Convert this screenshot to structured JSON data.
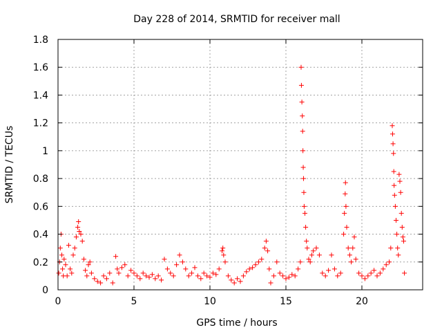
{
  "chart_data": {
    "type": "scatter",
    "title": "Day 228 of 2014, SRMTID for receiver mall",
    "xlabel": "GPS time / hours",
    "ylabel": "SRMTID / TECUs",
    "xlim": [
      0,
      24
    ],
    "ylim": [
      0,
      1.8
    ],
    "xticks": [
      0,
      5,
      10,
      15,
      20
    ],
    "xtick_labels": [
      "0",
      "5",
      "10",
      "15",
      "20"
    ],
    "yticks": [
      0,
      0.2,
      0.4,
      0.6,
      0.8,
      1,
      1.2,
      1.4,
      1.6,
      1.8
    ],
    "ytick_labels": [
      "0",
      "0.2",
      "0.4",
      "0.6",
      "0.8",
      "1",
      "1.2",
      "1.4",
      "1.6",
      "1.8"
    ],
    "grid": true,
    "marker": "+",
    "color": "#ff0000",
    "series": [
      {
        "name": "SRMTID",
        "points": [
          [
            0.05,
            0.12
          ],
          [
            0.1,
            0.2
          ],
          [
            0.15,
            0.3
          ],
          [
            0.2,
            0.4
          ],
          [
            0.25,
            0.25
          ],
          [
            0.3,
            0.15
          ],
          [
            0.35,
            0.1
          ],
          [
            0.4,
            0.22
          ],
          [
            0.5,
            0.18
          ],
          [
            0.6,
            0.1
          ],
          [
            0.7,
            0.32
          ],
          [
            0.8,
            0.15
          ],
          [
            0.9,
            0.12
          ],
          [
            1.0,
            0.25
          ],
          [
            1.1,
            0.3
          ],
          [
            1.2,
            0.38
          ],
          [
            1.3,
            0.45
          ],
          [
            1.35,
            0.49
          ],
          [
            1.4,
            0.42
          ],
          [
            1.5,
            0.4
          ],
          [
            1.6,
            0.35
          ],
          [
            1.7,
            0.22
          ],
          [
            1.8,
            0.14
          ],
          [
            1.9,
            0.1
          ],
          [
            2.0,
            0.18
          ],
          [
            2.1,
            0.2
          ],
          [
            2.2,
            0.12
          ],
          [
            2.4,
            0.08
          ],
          [
            2.6,
            0.06
          ],
          [
            2.8,
            0.05
          ],
          [
            3.0,
            0.1
          ],
          [
            3.2,
            0.08
          ],
          [
            3.4,
            0.12
          ],
          [
            3.6,
            0.05
          ],
          [
            3.8,
            0.24
          ],
          [
            3.9,
            0.15
          ],
          [
            4.0,
            0.12
          ],
          [
            4.2,
            0.16
          ],
          [
            4.4,
            0.18
          ],
          [
            4.6,
            0.1
          ],
          [
            4.8,
            0.14
          ],
          [
            5.0,
            0.12
          ],
          [
            5.2,
            0.1
          ],
          [
            5.4,
            0.08
          ],
          [
            5.6,
            0.12
          ],
          [
            5.8,
            0.1
          ],
          [
            6.0,
            0.09
          ],
          [
            6.2,
            0.11
          ],
          [
            6.4,
            0.08
          ],
          [
            6.6,
            0.1
          ],
          [
            6.8,
            0.07
          ],
          [
            7.0,
            0.22
          ],
          [
            7.2,
            0.15
          ],
          [
            7.4,
            0.12
          ],
          [
            7.6,
            0.1
          ],
          [
            7.8,
            0.18
          ],
          [
            8.0,
            0.25
          ],
          [
            8.2,
            0.2
          ],
          [
            8.4,
            0.15
          ],
          [
            8.6,
            0.1
          ],
          [
            8.8,
            0.12
          ],
          [
            9.0,
            0.16
          ],
          [
            9.2,
            0.1
          ],
          [
            9.4,
            0.08
          ],
          [
            9.6,
            0.12
          ],
          [
            9.8,
            0.1
          ],
          [
            10.0,
            0.09
          ],
          [
            10.2,
            0.12
          ],
          [
            10.4,
            0.11
          ],
          [
            10.6,
            0.15
          ],
          [
            10.8,
            0.28
          ],
          [
            10.85,
            0.3
          ],
          [
            10.9,
            0.25
          ],
          [
            11.0,
            0.2
          ],
          [
            11.2,
            0.1
          ],
          [
            11.4,
            0.07
          ],
          [
            11.6,
            0.05
          ],
          [
            11.8,
            0.08
          ],
          [
            12.0,
            0.06
          ],
          [
            12.2,
            0.1
          ],
          [
            12.4,
            0.13
          ],
          [
            12.6,
            0.15
          ],
          [
            12.8,
            0.16
          ],
          [
            13.0,
            0.18
          ],
          [
            13.2,
            0.2
          ],
          [
            13.4,
            0.22
          ],
          [
            13.6,
            0.3
          ],
          [
            13.7,
            0.35
          ],
          [
            13.8,
            0.28
          ],
          [
            13.9,
            0.15
          ],
          [
            14.0,
            0.05
          ],
          [
            14.2,
            0.1
          ],
          [
            14.4,
            0.2
          ],
          [
            14.6,
            0.12
          ],
          [
            14.8,
            0.1
          ],
          [
            15.0,
            0.08
          ],
          [
            15.2,
            0.09
          ],
          [
            15.4,
            0.11
          ],
          [
            15.6,
            0.1
          ],
          [
            15.8,
            0.15
          ],
          [
            15.95,
            0.2
          ],
          [
            16.0,
            1.6
          ],
          [
            16.02,
            1.47
          ],
          [
            16.05,
            1.35
          ],
          [
            16.08,
            1.25
          ],
          [
            16.1,
            1.14
          ],
          [
            16.12,
            1.0
          ],
          [
            16.14,
            0.88
          ],
          [
            16.16,
            0.8
          ],
          [
            16.18,
            0.7
          ],
          [
            16.2,
            0.6
          ],
          [
            16.25,
            0.55
          ],
          [
            16.3,
            0.45
          ],
          [
            16.35,
            0.35
          ],
          [
            16.4,
            0.3
          ],
          [
            16.5,
            0.22
          ],
          [
            16.6,
            0.2
          ],
          [
            16.7,
            0.25
          ],
          [
            16.8,
            0.28
          ],
          [
            17.0,
            0.3
          ],
          [
            17.2,
            0.25
          ],
          [
            17.4,
            0.12
          ],
          [
            17.6,
            0.1
          ],
          [
            17.8,
            0.14
          ],
          [
            18.0,
            0.25
          ],
          [
            18.2,
            0.15
          ],
          [
            18.4,
            0.1
          ],
          [
            18.6,
            0.12
          ],
          [
            18.8,
            0.4
          ],
          [
            18.85,
            0.55
          ],
          [
            18.9,
            0.69
          ],
          [
            18.92,
            0.77
          ],
          [
            18.95,
            0.6
          ],
          [
            19.0,
            0.45
          ],
          [
            19.1,
            0.3
          ],
          [
            19.2,
            0.25
          ],
          [
            19.3,
            0.2
          ],
          [
            19.4,
            0.3
          ],
          [
            19.5,
            0.38
          ],
          [
            19.6,
            0.22
          ],
          [
            19.8,
            0.12
          ],
          [
            20.0,
            0.1
          ],
          [
            20.2,
            0.08
          ],
          [
            20.4,
            0.1
          ],
          [
            20.6,
            0.12
          ],
          [
            20.8,
            0.14
          ],
          [
            21.0,
            0.1
          ],
          [
            21.2,
            0.12
          ],
          [
            21.4,
            0.15
          ],
          [
            21.6,
            0.18
          ],
          [
            21.8,
            0.2
          ],
          [
            21.9,
            0.3
          ],
          [
            22.0,
            1.18
          ],
          [
            22.02,
            1.12
          ],
          [
            22.05,
            1.05
          ],
          [
            22.08,
            0.98
          ],
          [
            22.1,
            0.85
          ],
          [
            22.12,
            0.75
          ],
          [
            22.15,
            0.68
          ],
          [
            22.2,
            0.6
          ],
          [
            22.25,
            0.5
          ],
          [
            22.3,
            0.4
          ],
          [
            22.35,
            0.3
          ],
          [
            22.4,
            0.25
          ],
          [
            22.45,
            0.83
          ],
          [
            22.5,
            0.78
          ],
          [
            22.55,
            0.7
          ],
          [
            22.6,
            0.55
          ],
          [
            22.65,
            0.45
          ],
          [
            22.7,
            0.38
          ],
          [
            22.75,
            0.35
          ],
          [
            22.8,
            0.12
          ]
        ]
      }
    ]
  }
}
